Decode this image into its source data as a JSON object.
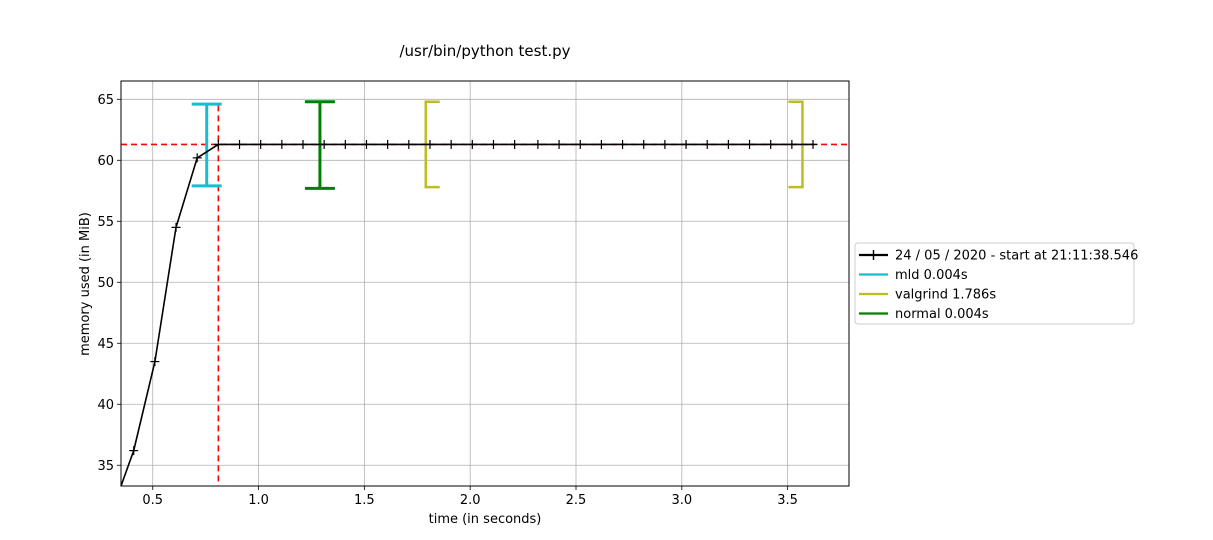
{
  "chart_data": {
    "type": "line",
    "title": "/usr/bin/python test.py",
    "xlabel": "time (in seconds)",
    "ylabel": "memory used (in MiB)",
    "xlim": [
      0.35,
      3.79
    ],
    "ylim": [
      33.3,
      66.5
    ],
    "xticks": [
      0.5,
      1.0,
      1.5,
      2.0,
      2.5,
      3.0,
      3.5
    ],
    "xtick_labels": [
      "0.5",
      "1.0",
      "1.5",
      "2.0",
      "2.5",
      "3.0",
      "3.5"
    ],
    "yticks": [
      35,
      40,
      45,
      50,
      55,
      60,
      65
    ],
    "ytick_labels": [
      "35",
      "40",
      "45",
      "50",
      "55",
      "60",
      "65"
    ],
    "grid": true,
    "legend_position": "center-right-outside",
    "series": [
      {
        "name": "24 / 05 / 2020 - start at 21:11:38.546",
        "color": "#000000",
        "marker": "+",
        "x": [
          0.35,
          0.41,
          0.51,
          0.61,
          0.71,
          0.81,
          0.91,
          1.01,
          1.11,
          1.21,
          1.31,
          1.41,
          1.51,
          1.61,
          1.71,
          1.81,
          1.91,
          2.01,
          2.11,
          2.21,
          2.32,
          2.42,
          2.52,
          2.62,
          2.72,
          2.82,
          2.92,
          3.02,
          3.12,
          3.22,
          3.32,
          3.42,
          3.52,
          3.62
        ],
        "y": [
          33.3,
          36.2,
          43.5,
          54.5,
          60.2,
          61.3,
          61.3,
          61.3,
          61.3,
          61.3,
          61.3,
          61.3,
          61.3,
          61.3,
          61.3,
          61.3,
          61.3,
          61.3,
          61.3,
          61.3,
          61.3,
          61.3,
          61.3,
          61.3,
          61.3,
          61.3,
          61.3,
          61.3,
          61.3,
          61.3,
          61.3,
          61.3,
          61.3,
          61.3
        ]
      }
    ],
    "reference_lines": {
      "color": "#ff0000",
      "horizontal_y": 61.3,
      "vertical_x": 0.81,
      "vertical_top_y": 64.5
    },
    "brackets": [
      {
        "name": "mld 0.004s",
        "color": "#17becf",
        "kind": "full",
        "x_start": 0.755,
        "x_end": 0.755,
        "ymin": 57.9,
        "ymax": 64.6
      },
      {
        "name": "valgrind 1.786s",
        "color": "#bcbd22",
        "kind": "open-interval",
        "x_start": 1.79,
        "x_end": 3.57,
        "ymin": 57.8,
        "ymax": 64.8
      },
      {
        "name": "normal 0.004s",
        "color": "#008000",
        "kind": "full",
        "x_start": 1.29,
        "x_end": 1.29,
        "ymin": 57.7,
        "ymax": 64.8
      }
    ],
    "legend": [
      {
        "label": "24 / 05 / 2020 - start at 21:11:38.546",
        "color": "#000000",
        "marker": "+"
      },
      {
        "label": "mld 0.004s",
        "color": "#17becf"
      },
      {
        "label": "valgrind 1.786s",
        "color": "#bcbd22"
      },
      {
        "label": "normal 0.004s",
        "color": "#008000"
      }
    ]
  }
}
